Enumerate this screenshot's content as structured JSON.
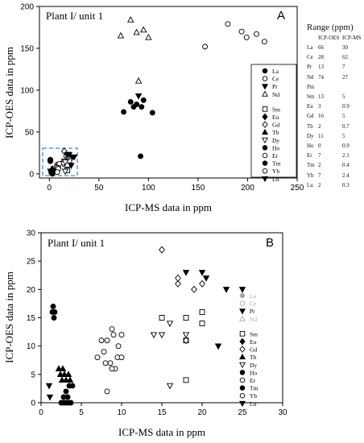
{
  "range_table": {
    "title": "Range (ppm)",
    "col_headers": [
      "ICP-OES",
      "ICP-MS"
    ],
    "rows": [
      {
        "el": "La",
        "oes": "66",
        "ms": "30"
      },
      {
        "el": "Ce",
        "oes": "28",
        "ms": "62"
      },
      {
        "el": "Pr",
        "oes": "13",
        "ms": "7"
      },
      {
        "el": "Nd",
        "oes": "74",
        "ms": "27"
      },
      {
        "el": "Pm",
        "oes": "",
        "ms": ""
      },
      {
        "el": "Sm",
        "oes": "13",
        "ms": "5"
      },
      {
        "el": "Eu",
        "oes": "3",
        "ms": "0.9"
      },
      {
        "el": "Gd",
        "oes": "16",
        "ms": "5"
      },
      {
        "el": "Tb",
        "oes": "2",
        "ms": "0.7"
      },
      {
        "el": "Dy",
        "oes": "11",
        "ms": "5"
      },
      {
        "el": "Ho",
        "oes": "0",
        "ms": "0.9"
      },
      {
        "el": "Er",
        "oes": "7",
        "ms": "2.1"
      },
      {
        "el": "Tm",
        "oes": "2",
        "ms": "0.4"
      },
      {
        "el": "Yb",
        "oes": "7",
        "ms": "2.4"
      },
      {
        "el": "Lu",
        "oes": "2",
        "ms": "0.3"
      }
    ]
  },
  "chart_data": [
    {
      "type": "scatter",
      "panel_label": "A",
      "title": "Plant I/ unit 1",
      "xlabel": "ICP-MS data in ppm",
      "ylabel": "ICP-OES data in ppm",
      "xlim": [
        -10,
        250
      ],
      "ylim": [
        -5,
        200
      ],
      "xticks": [
        0,
        50,
        100,
        150,
        200,
        250
      ],
      "yticks": [
        0,
        50,
        100,
        150,
        200
      ],
      "legend_position": "right",
      "series": [
        {
          "name": "La",
          "marker": "circle-filled",
          "color": "#000000",
          "points": [
            [
              75,
              74
            ],
            [
              82,
              86
            ],
            [
              85,
              80
            ],
            [
              88,
              83
            ],
            [
              93,
              80
            ],
            [
              95,
              88
            ],
            [
              104,
              73
            ],
            [
              92,
              21
            ]
          ]
        },
        {
          "name": "Ce",
          "marker": "circle-open",
          "color": "#000000",
          "points": [
            [
              157,
              152
            ],
            [
              180,
              179
            ],
            [
              194,
              170
            ],
            [
              199,
              163
            ],
            [
              209,
              167
            ],
            [
              217,
              158
            ]
          ]
        },
        {
          "name": "Pr",
          "marker": "triangle-down-filled",
          "color": "#000000",
          "points": [
            [
              90,
              93
            ]
          ]
        },
        {
          "name": "Nd",
          "marker": "triangle-up-open",
          "color": "#000000",
          "points": [
            [
              72,
              165
            ],
            [
              82,
              184
            ],
            [
              88,
              169
            ],
            [
              95,
              172
            ],
            [
              100,
              163
            ],
            [
              90,
              111
            ]
          ]
        },
        {
          "name": "Sm",
          "marker": "square-open",
          "color": "#000000",
          "points": [
            [
              15,
              15
            ],
            [
              18,
              11
            ],
            [
              20,
              16
            ],
            [
              18,
              4
            ]
          ]
        },
        {
          "name": "Eu",
          "marker": "diamond-filled",
          "color": "#000000",
          "points": [
            [
              1,
              16
            ],
            [
              2,
              4
            ],
            [
              3,
              2
            ]
          ]
        },
        {
          "name": "Gd",
          "marker": "diamond-open",
          "color": "#000000",
          "points": [
            [
              15,
              27
            ],
            [
              17,
              21
            ],
            [
              19,
              20
            ],
            [
              20,
              21
            ]
          ]
        },
        {
          "name": "Tb",
          "marker": "triangle-up-filled",
          "color": "#000000",
          "points": [
            [
              2,
              5
            ],
            [
              3,
              6
            ],
            [
              3,
              4
            ]
          ]
        },
        {
          "name": "Dy",
          "marker": "triangle-down-open",
          "color": "#000000",
          "points": [
            [
              14,
              12
            ],
            [
              16,
              3
            ],
            [
              16,
              14
            ]
          ]
        },
        {
          "name": "Ho",
          "marker": "circle-filled",
          "color": "#000000",
          "points": [
            [
              1,
              16
            ],
            [
              1,
              15
            ],
            [
              1,
              17
            ]
          ]
        },
        {
          "name": "Er",
          "marker": "circle-open",
          "color": "#000000",
          "points": [
            [
              8,
              11
            ],
            [
              9,
              10
            ],
            [
              10,
              12
            ],
            [
              9,
              7
            ]
          ]
        },
        {
          "name": "Tm",
          "marker": "circle-filled",
          "color": "#000000",
          "points": [
            [
              3,
              0
            ],
            [
              3,
              2
            ],
            [
              4,
              3
            ],
            [
              2,
              1
            ]
          ]
        },
        {
          "name": "Yb",
          "marker": "circle-open",
          "color": "#000000",
          "points": [
            [
              7,
              8
            ],
            [
              8,
              7
            ],
            [
              9,
              6
            ],
            [
              8,
              2
            ]
          ]
        },
        {
          "name": "Lu",
          "marker": "triangle-down-filled",
          "color": "#000000",
          "points": [
            [
              18,
              23
            ],
            [
              20,
              23
            ],
            [
              23,
              20
            ],
            [
              25,
              20
            ],
            [
              22,
              10
            ],
            [
              1,
              3
            ]
          ]
        }
      ]
    },
    {
      "type": "scatter",
      "panel_label": "B",
      "title": "Plant I/ unit 1",
      "xlabel": "ICP-MS data in ppm",
      "ylabel": "ICP-OES data in ppm",
      "xlim": [
        0,
        30
      ],
      "ylim": [
        0,
        30
      ],
      "xticks": [
        0,
        5,
        10,
        15,
        20,
        25,
        30
      ],
      "yticks": [
        0,
        5,
        10,
        15,
        20,
        25,
        30
      ],
      "legend_position": "right",
      "series": [
        {
          "name": "La",
          "marker": "circle-filled",
          "color": "#a9a9a9",
          "points": []
        },
        {
          "name": "Ce",
          "marker": "circle-open",
          "color": "#a9a9a9",
          "points": []
        },
        {
          "name": "Pr",
          "marker": "triangle-down-filled",
          "color": "#000000",
          "points": []
        },
        {
          "name": "Nd",
          "marker": "triangle-up-open",
          "color": "#a9a9a9",
          "points": []
        },
        {
          "name": "Sm",
          "marker": "square-open",
          "color": "#000000",
          "points": [
            [
              15,
              15
            ],
            [
              18,
              11
            ],
            [
              18,
              15
            ],
            [
              20,
              16
            ],
            [
              20,
              14
            ],
            [
              18,
              4
            ]
          ]
        },
        {
          "name": "Eu",
          "marker": "diamond-filled",
          "color": "#000000",
          "points": []
        },
        {
          "name": "Gd",
          "marker": "diamond-open",
          "color": "#000000",
          "points": [
            [
              15,
              27
            ],
            [
              17,
              21
            ],
            [
              17,
              22
            ],
            [
              19,
              20
            ],
            [
              20,
              21
            ],
            [
              18,
              11
            ]
          ]
        },
        {
          "name": "Tb",
          "marker": "triangle-up-filled",
          "color": "#000000",
          "points": [
            [
              2.2,
              6
            ],
            [
              2.4,
              5
            ],
            [
              2.7,
              6
            ],
            [
              2.9,
              5
            ],
            [
              3.1,
              4
            ],
            [
              3.4,
              5
            ],
            [
              3.6,
              4
            ],
            [
              2.6,
              4
            ]
          ]
        },
        {
          "name": "Dy",
          "marker": "triangle-down-open",
          "color": "#000000",
          "points": [
            [
              14,
              12
            ],
            [
              15,
              12
            ],
            [
              16,
              14
            ],
            [
              16,
              3
            ],
            [
              18,
              12
            ]
          ]
        },
        {
          "name": "Ho",
          "marker": "circle-filled",
          "color": "#000000",
          "points": [
            [
              1.4,
              16
            ],
            [
              1.6,
              15
            ],
            [
              1.5,
              17
            ],
            [
              1.7,
              16
            ]
          ]
        },
        {
          "name": "Er",
          "marker": "circle-open",
          "color": "#000000",
          "points": [
            [
              7.5,
              11
            ],
            [
              8.2,
              11
            ],
            [
              8.8,
              13
            ],
            [
              9,
              12
            ],
            [
              10,
              12
            ],
            [
              9.6,
              10
            ],
            [
              8,
              7
            ],
            [
              9.5,
              8
            ],
            [
              8.2,
              2
            ]
          ]
        },
        {
          "name": "Tm",
          "marker": "circle-filled",
          "color": "#000000",
          "points": [
            [
              2.5,
              0
            ],
            [
              2.8,
              0
            ],
            [
              3.1,
              0
            ],
            [
              3.4,
              0
            ],
            [
              3.7,
              0
            ],
            [
              2.8,
              1
            ],
            [
              3.1,
              2
            ],
            [
              3.5,
              3
            ],
            [
              3.9,
              3
            ],
            [
              3.3,
              1
            ]
          ]
        },
        {
          "name": "Yb",
          "marker": "circle-open",
          "color": "#000000",
          "points": [
            [
              7,
              8
            ],
            [
              7.8,
              9
            ],
            [
              8.6,
              7
            ],
            [
              9.2,
              6
            ],
            [
              10,
              8
            ],
            [
              8.8,
              6
            ]
          ]
        },
        {
          "name": "Lu",
          "marker": "triangle-down-filled",
          "color": "#000000",
          "points": [
            [
              18,
              23
            ],
            [
              20,
              23
            ],
            [
              20.5,
              22
            ],
            [
              23,
              20
            ],
            [
              25,
              20
            ],
            [
              22,
              10
            ],
            [
              1,
              3
            ],
            [
              1.1,
              1
            ]
          ]
        }
      ]
    }
  ]
}
